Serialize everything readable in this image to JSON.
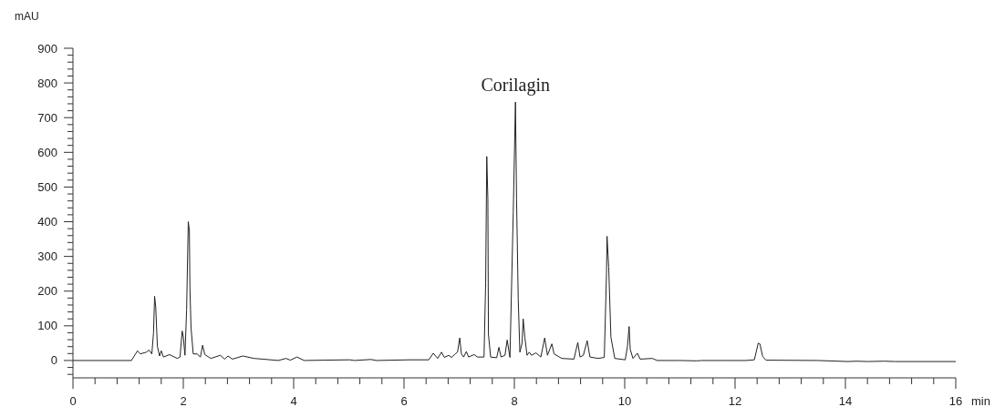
{
  "chart_data": {
    "type": "line",
    "xlabel": "min",
    "ylabel": "mAU",
    "xlim": [
      0,
      16
    ],
    "ylim": [
      -50,
      900
    ],
    "xticks": [
      0,
      {
        "value": 0.4,
        "label": null
      },
      {
        "value": 0.8,
        "label": null
      },
      {
        "value": 1.2,
        "label": null
      },
      {
        "value": 1.6,
        "label": null
      },
      2,
      {
        "value": 2.4,
        "label": null
      },
      {
        "value": 2.8,
        "label": null
      },
      {
        "value": 3.2,
        "label": null
      },
      {
        "value": 3.6,
        "label": null
      },
      4,
      {
        "value": 4.4,
        "label": null
      },
      {
        "value": 4.8,
        "label": null
      },
      {
        "value": 5.2,
        "label": null
      },
      {
        "value": 5.6,
        "label": null
      },
      6,
      {
        "value": 6.4,
        "label": null
      },
      {
        "value": 6.8,
        "label": null
      },
      {
        "value": 7.2,
        "label": null
      },
      {
        "value": 7.6,
        "label": null
      },
      8,
      {
        "value": 8.4,
        "label": null
      },
      {
        "value": 8.8,
        "label": null
      },
      {
        "value": 9.2,
        "label": null
      },
      {
        "value": 9.6,
        "label": null
      },
      10,
      {
        "value": 10.4,
        "label": null
      },
      {
        "value": 10.8,
        "label": null
      },
      {
        "value": 11.2,
        "label": null
      },
      {
        "value": 11.6,
        "label": null
      },
      12,
      {
        "value": 12.4,
        "label": null
      },
      {
        "value": 12.8,
        "label": null
      },
      {
        "value": 13.2,
        "label": null
      },
      {
        "value": 13.6,
        "label": null
      },
      14,
      {
        "value": 14.4,
        "label": null
      },
      {
        "value": 14.8,
        "label": null
      },
      {
        "value": 15.2,
        "label": null
      },
      {
        "value": 15.6,
        "label": null
      },
      16
    ],
    "yticks": [
      {
        "value": -40,
        "label": null
      },
      {
        "value": -20,
        "label": null
      },
      0,
      {
        "value": 20,
        "label": null
      },
      {
        "value": 40,
        "label": null
      },
      {
        "value": 60,
        "label": null
      },
      {
        "value": 80,
        "label": null
      },
      100,
      {
        "value": 120,
        "label": null
      },
      {
        "value": 140,
        "label": null
      },
      {
        "value": 160,
        "label": null
      },
      {
        "value": 180,
        "label": null
      },
      200,
      {
        "value": 220,
        "label": null
      },
      {
        "value": 240,
        "label": null
      },
      {
        "value": 260,
        "label": null
      },
      {
        "value": 280,
        "label": null
      },
      300,
      {
        "value": 320,
        "label": null
      },
      {
        "value": 340,
        "label": null
      },
      {
        "value": 360,
        "label": null
      },
      {
        "value": 380,
        "label": null
      },
      400,
      {
        "value": 420,
        "label": null
      },
      {
        "value": 440,
        "label": null
      },
      {
        "value": 460,
        "label": null
      },
      {
        "value": 480,
        "label": null
      },
      500,
      {
        "value": 520,
        "label": null
      },
      {
        "value": 540,
        "label": null
      },
      {
        "value": 560,
        "label": null
      },
      {
        "value": 580,
        "label": null
      },
      600,
      {
        "value": 620,
        "label": null
      },
      {
        "value": 640,
        "label": null
      },
      {
        "value": 660,
        "label": null
      },
      {
        "value": 680,
        "label": null
      },
      700,
      {
        "value": 720,
        "label": null
      },
      {
        "value": 740,
        "label": null
      },
      {
        "value": 760,
        "label": null
      },
      {
        "value": 780,
        "label": null
      },
      800,
      {
        "value": 820,
        "label": null
      },
      {
        "value": 840,
        "label": null
      },
      {
        "value": 860,
        "label": null
      },
      {
        "value": 880,
        "label": null
      },
      900
    ],
    "marker": "none",
    "line_style": "solid",
    "annotations": [
      {
        "text": "Corilagin",
        "x": 8.02,
        "y": 745
      }
    ],
    "series": [
      {
        "color": "#222222",
        "x": [
          0,
          1.06,
          1.17,
          1.22,
          1.33,
          1.38,
          1.43,
          1.46,
          1.48,
          1.5,
          1.53,
          1.57,
          1.6,
          1.64,
          1.75,
          1.89,
          1.94,
          1.98,
          2.0,
          2.03,
          2.06,
          2.09,
          2.11,
          2.12,
          2.14,
          2.18,
          2.25,
          2.31,
          2.35,
          2.39,
          2.5,
          2.67,
          2.75,
          2.81,
          2.89,
          3.08,
          3.28,
          3.44,
          3.72,
          3.86,
          3.94,
          4.06,
          4.19,
          4.56,
          5.02,
          5.1,
          5.4,
          5.5,
          6.1,
          6.45,
          6.53,
          6.61,
          6.68,
          6.73,
          6.81,
          6.86,
          6.93,
          6.97,
          7.01,
          7.04,
          7.08,
          7.13,
          7.17,
          7.27,
          7.33,
          7.45,
          7.48,
          7.5,
          7.52,
          7.53,
          7.57,
          7.68,
          7.72,
          7.76,
          7.83,
          7.87,
          7.92,
          7.98,
          8.02,
          8.04,
          8.07,
          8.1,
          8.14,
          8.16,
          8.19,
          8.23,
          8.27,
          8.31,
          8.39,
          8.48,
          8.55,
          8.6,
          8.68,
          8.72,
          8.86,
          9.08,
          9.15,
          9.19,
          9.25,
          9.32,
          9.37,
          9.52,
          9.63,
          9.67,
          9.68,
          9.71,
          9.75,
          9.82,
          10.01,
          10.05,
          10.08,
          10.1,
          10.15,
          10.23,
          10.28,
          10.5,
          10.59,
          11.0,
          11.3,
          11.4,
          11.8,
          12.2,
          12.35,
          12.42,
          12.45,
          12.5,
          12.56,
          13.5,
          14.05,
          14.2,
          14.4,
          14.7,
          14.9,
          16
        ],
        "values": [
          0,
          0,
          28,
          19,
          24,
          30,
          19,
          80,
          185,
          155,
          41,
          13,
          28,
          10,
          17,
          6,
          10,
          85,
          68,
          15,
          146,
          400,
          375,
          208,
          94,
          19,
          19,
          10,
          44,
          17,
          6,
          15,
          4,
          13,
          4,
          13,
          6,
          4,
          0,
          6,
          1,
          10,
          0,
          1,
          2,
          0,
          3,
          0,
          2,
          2,
          21,
          6,
          24,
          9,
          15,
          9,
          19,
          24,
          65,
          19,
          10,
          26,
          10,
          17,
          10,
          10,
          225,
          588,
          465,
          76,
          10,
          8,
          38,
          10,
          15,
          59,
          9,
          426,
          745,
          465,
          177,
          24,
          50,
          120,
          67,
          15,
          24,
          15,
          22,
          10,
          65,
          15,
          48,
          19,
          6,
          4,
          52,
          10,
          15,
          57,
          10,
          6,
          9,
          251,
          358,
          269,
          67,
          6,
          2,
          41,
          98,
          32,
          6,
          21,
          4,
          6,
          0,
          0,
          -1,
          0,
          0,
          0,
          2,
          50,
          48,
          12,
          1,
          0,
          -3,
          -2,
          -3,
          -2,
          -3,
          -3
        ]
      }
    ]
  }
}
